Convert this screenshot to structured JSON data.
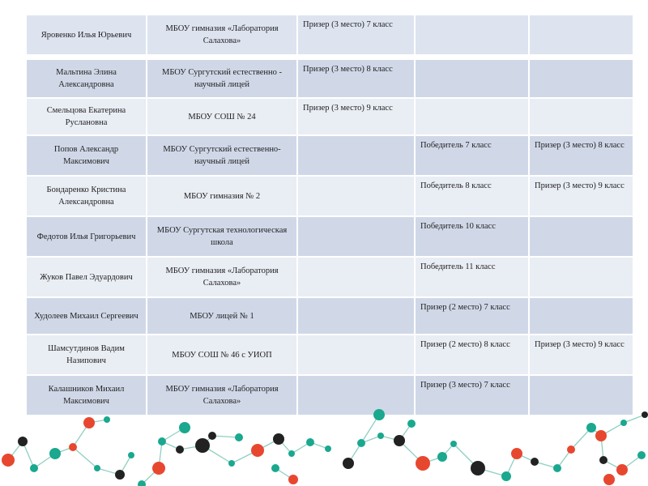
{
  "rows": [
    {
      "name": "Яровенко Илья Юрьевич",
      "school": "МБОУ гимназия «Лаборатория Салахова»",
      "col3": "Призер (3 место) 7 класс",
      "col4": "",
      "col5": ""
    },
    {
      "name": "Мальтина Элина Александровна",
      "school": "МБОУ Сургутский естественно - научный лицей",
      "col3": "Призер (3 место) 8 класс",
      "col4": "",
      "col5": ""
    },
    {
      "name": "Смельцова Екатерина Руслановна",
      "school": "МБОУ СОШ № 24",
      "col3": "Призер (3 место) 9 класс",
      "col4": "",
      "col5": ""
    },
    {
      "name": "Попов Александр Максимович",
      "school": "МБОУ Сургутский естественно-научный лицей",
      "col3": "",
      "col4": "Победитель 7 класс",
      "col5": "Призер (3 место) 8 класс"
    },
    {
      "name": "Бондаренко Кристина Александровна",
      "school": "МБОУ гимназия № 2",
      "col3": "",
      "col4": "Победитель 8 класс",
      "col5": "Призер (3 место) 9 класс"
    },
    {
      "name": "Федотов Илья Григорьевич",
      "school": "МБОУ Сургутская технологическая школа",
      "col3": "",
      "col4": "Победитель 10 класс",
      "col5": ""
    },
    {
      "name": "Жуков Павел Эдуардович",
      "school": "МБОУ гимназия «Лаборатория Салахова»",
      "col3": "",
      "col4": "Победитель 11 класс",
      "col5": ""
    },
    {
      "name": "Худолеев Михаил Сергеевич",
      "school": "МБОУ лицей № 1",
      "col3": "",
      "col4": "Призер (2 место) 7 класс",
      "col5": ""
    },
    {
      "name": "Шамсутдинов Вадим Назипович",
      "school": "МБОУ СОШ № 46 с УИОП",
      "col3": "",
      "col4": "Призер (2 место) 8 класс",
      "col5": "Призер (3 место) 9 класс"
    },
    {
      "name": "Калашников Михаил Максимович",
      "school": "МБОУ гимназия «Лаборатория Салахова»",
      "col3": "",
      "col4": "Призер (3 место) 7 класс",
      "col5": ""
    }
  ],
  "decor": {
    "colors": {
      "red": "#e8472f",
      "teal": "#1aa88f",
      "dark": "#222222",
      "line": "#8fcfc2"
    },
    "icon": "molecule-network-icon"
  }
}
